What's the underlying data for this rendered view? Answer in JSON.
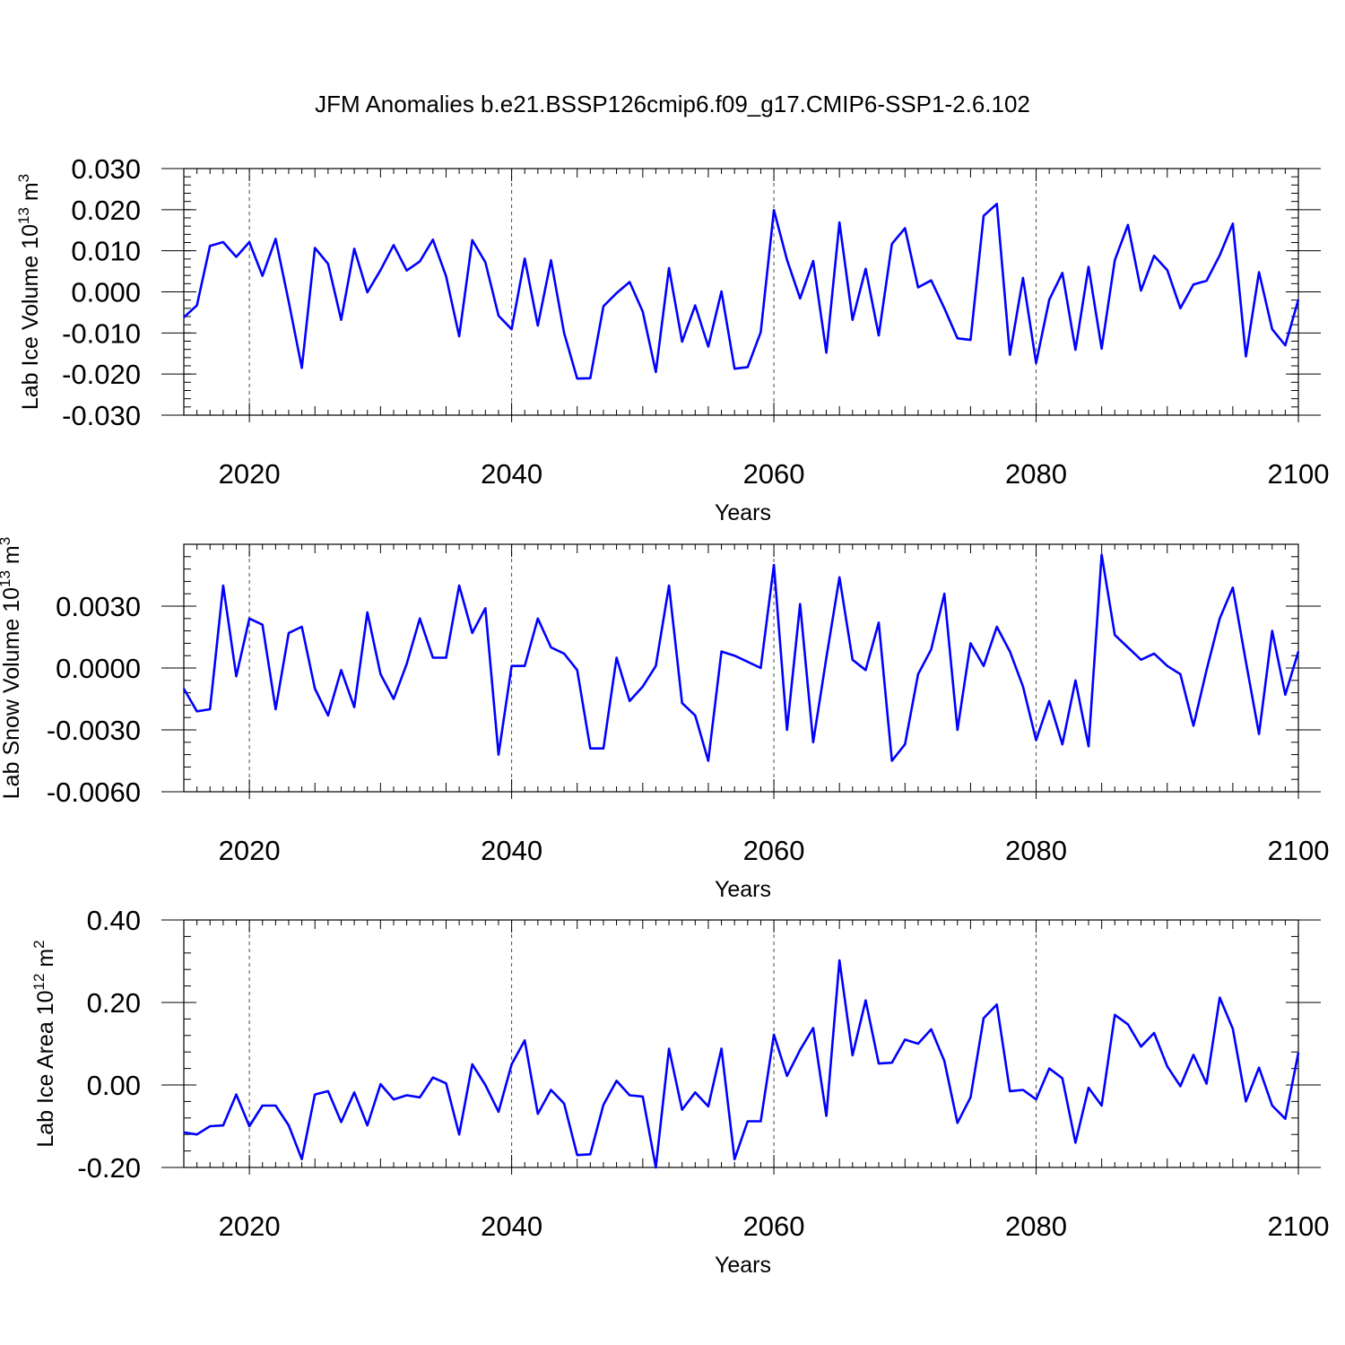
{
  "title": "JFM Anomalies b.e21.BSSP126cmip6.f09_g17.CMIP6-SSP1-2.6.102",
  "colors": {
    "line": "#0000ff",
    "axis": "#000000",
    "background": "#ffffff"
  },
  "chart_data": [
    {
      "type": "line",
      "id": "ice-volume",
      "ylabel_main": "Lab Ice Volume 10",
      "ylabel_exp": "13",
      "ylabel_unit": " m",
      "ylabel_unit_exp": "3",
      "xlabel": "Years",
      "xlim": [
        2015,
        2100
      ],
      "ylim": [
        -0.03,
        0.03
      ],
      "yticks": [
        -0.03,
        -0.02,
        -0.01,
        0.0,
        0.01,
        0.02,
        0.03
      ],
      "ytick_labels": [
        "-0.030",
        "-0.020",
        "-0.010",
        "0.000",
        "0.010",
        "0.020",
        "0.030"
      ],
      "xticks": [
        2020,
        2040,
        2060,
        2080,
        2100
      ],
      "xtick_labels": [
        "2020",
        "2040",
        "2060",
        "2080",
        "2100"
      ],
      "series": [
        {
          "name": "Lab Ice Volume",
          "x_start": 2015,
          "values": [
            -0.0062,
            -0.0033,
            0.0112,
            0.0121,
            0.0085,
            0.0121,
            0.0039,
            0.0129,
            -0.0024,
            -0.0185,
            0.0107,
            0.0068,
            -0.0068,
            0.0105,
            -0.0001,
            0.0053,
            0.0114,
            0.0052,
            0.0074,
            0.0127,
            0.0038,
            -0.0108,
            0.0126,
            0.0072,
            -0.0058,
            -0.0091,
            0.0081,
            -0.0082,
            0.0077,
            -0.01,
            -0.0211,
            -0.021,
            -0.0035,
            -0.0003,
            0.0024,
            -0.0048,
            -0.0195,
            0.0058,
            -0.0121,
            -0.0033,
            -0.0133,
            0.0001,
            -0.0187,
            -0.0183,
            -0.0098,
            0.0199,
            0.0078,
            -0.0016,
            0.0075,
            -0.0148,
            0.0169,
            -0.0068,
            0.0056,
            -0.0106,
            0.0117,
            0.0155,
            0.0011,
            0.0028,
            -0.004,
            -0.0113,
            -0.0117,
            0.0185,
            0.0214,
            -0.0153,
            0.0034,
            -0.0173,
            -0.0019,
            0.0046,
            -0.0141,
            0.0061,
            -0.0138,
            0.0077,
            0.0163,
            0.0003,
            0.0088,
            0.0053,
            -0.004,
            0.0018,
            0.0027,
            0.0089,
            0.0166,
            -0.0157,
            0.0048,
            -0.0091,
            -0.013,
            -0.0019
          ]
        }
      ]
    },
    {
      "type": "line",
      "id": "snow-volume",
      "ylabel_main": "Lab Snow Volume 10",
      "ylabel_exp": "13",
      "ylabel_unit": " m",
      "ylabel_unit_exp": "3",
      "xlabel": "Years",
      "xlim": [
        2015,
        2100
      ],
      "ylim": [
        -0.006,
        0.006
      ],
      "yticks": [
        -0.006,
        -0.003,
        0.0,
        0.003
      ],
      "ytick_labels": [
        "-0.0060",
        "-0.0030",
        "0.0000",
        "0.0030"
      ],
      "xticks": [
        2020,
        2040,
        2060,
        2080,
        2100
      ],
      "xtick_labels": [
        "2020",
        "2040",
        "2060",
        "2080",
        "2100"
      ],
      "series": [
        {
          "name": "Lab Snow Volume",
          "x_start": 2015,
          "values": [
            -0.001,
            -0.0021,
            -0.002,
            0.004,
            -0.0004,
            0.0024,
            0.0021,
            -0.002,
            0.0017,
            0.002,
            -0.001,
            -0.0023,
            -0.0001,
            -0.0019,
            0.0027,
            -0.0003,
            -0.0015,
            0.0002,
            0.0024,
            0.0005,
            0.0005,
            0.004,
            0.0017,
            0.0029,
            -0.0042,
            0.0001,
            0.0001,
            0.0024,
            0.001,
            0.0007,
            -0.0001,
            -0.0039,
            -0.0039,
            0.0005,
            -0.0016,
            -0.0009,
            0.0001,
            0.004,
            -0.0017,
            -0.0023,
            -0.0045,
            0.0008,
            0.0006,
            0.0003,
            0.0,
            0.005,
            -0.003,
            0.0031,
            -0.0036,
            0.0005,
            0.0044,
            0.0004,
            -0.0001,
            0.0022,
            -0.0045,
            -0.0037,
            -0.0003,
            0.0009,
            0.0036,
            -0.003,
            0.0012,
            0.0001,
            0.002,
            0.0008,
            -0.0009,
            -0.0035,
            -0.0016,
            -0.0037,
            -0.0006,
            -0.0038,
            0.0055,
            0.0016,
            0.001,
            0.0004,
            0.0007,
            0.0001,
            -0.0003,
            -0.0028,
            -0.0001,
            0.0024,
            0.0039,
            0.0003,
            -0.0032,
            0.0018,
            -0.0013,
            0.0008
          ]
        }
      ]
    },
    {
      "type": "line",
      "id": "ice-area",
      "ylabel_main": "Lab Ice Area 10",
      "ylabel_exp": "12",
      "ylabel_unit": " m",
      "ylabel_unit_exp": "2",
      "xlabel": "Years",
      "xlim": [
        2015,
        2100
      ],
      "ylim": [
        -0.2,
        0.4
      ],
      "yticks": [
        -0.2,
        0.0,
        0.2,
        0.4
      ],
      "ytick_labels": [
        "-0.20",
        "0.00",
        "0.20",
        "0.40"
      ],
      "xticks": [
        2020,
        2040,
        2060,
        2080,
        2100
      ],
      "xtick_labels": [
        "2020",
        "2040",
        "2060",
        "2080",
        "2100"
      ],
      "series": [
        {
          "name": "Lab Ice Area",
          "x_start": 2015,
          "values": [
            -0.115,
            -0.12,
            -0.1,
            -0.098,
            -0.023,
            -0.1,
            -0.05,
            -0.05,
            -0.098,
            -0.18,
            -0.023,
            -0.015,
            -0.09,
            -0.018,
            -0.098,
            0.002,
            -0.035,
            -0.025,
            -0.03,
            0.018,
            0.004,
            -0.12,
            0.05,
            0.0,
            -0.065,
            0.05,
            0.108,
            -0.07,
            -0.012,
            -0.045,
            -0.17,
            -0.168,
            -0.048,
            0.01,
            -0.025,
            -0.028,
            -0.2,
            0.088,
            -0.06,
            -0.018,
            -0.052,
            0.088,
            -0.18,
            -0.088,
            -0.088,
            0.122,
            0.022,
            0.085,
            0.138,
            -0.075,
            0.302,
            0.072,
            0.205,
            0.052,
            0.054,
            0.11,
            0.1,
            0.135,
            0.058,
            -0.092,
            -0.03,
            0.162,
            0.195,
            -0.015,
            -0.012,
            -0.035,
            0.04,
            0.016,
            -0.14,
            -0.007,
            -0.05,
            0.17,
            0.147,
            0.093,
            0.126,
            0.045,
            -0.003,
            0.073,
            0.003,
            0.212,
            0.136,
            -0.04,
            0.042,
            -0.05,
            -0.082,
            0.078
          ]
        }
      ]
    }
  ]
}
